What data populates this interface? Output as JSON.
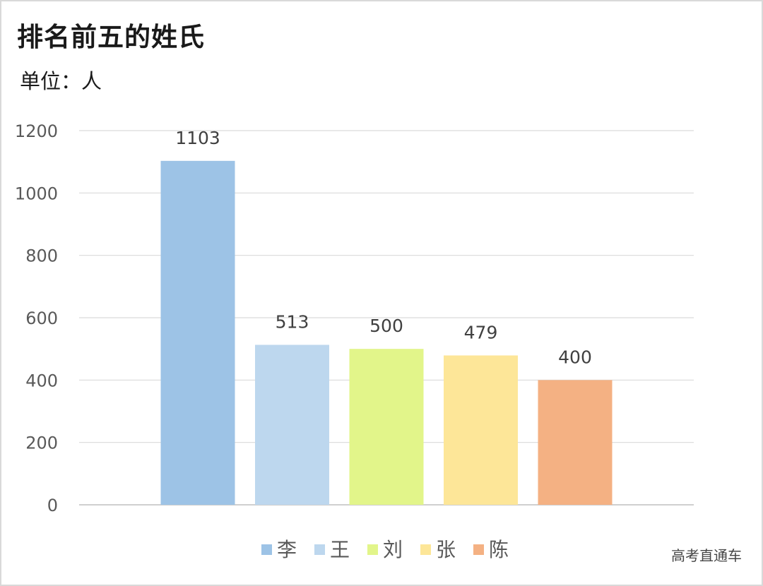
{
  "title": "排名前五的姓氏",
  "unit_label": "单位：人",
  "watermark": "高考直通车",
  "chart_data": {
    "type": "bar",
    "title": "排名前五的姓氏",
    "ylabel": "单位：人",
    "xlabel": "",
    "ylim": [
      0,
      1200
    ],
    "yticks": [
      0,
      200,
      400,
      600,
      800,
      1000,
      1200
    ],
    "grid": true,
    "legend": "bottom",
    "series": [
      {
        "name": "李",
        "value": 1103,
        "color": "#9dc3e6"
      },
      {
        "name": "王",
        "value": 513,
        "color": "#bdd7ee"
      },
      {
        "name": "刘",
        "value": 500,
        "color": "#e2f58a"
      },
      {
        "name": "张",
        "value": 479,
        "color": "#fde698"
      },
      {
        "name": "陈",
        "value": 400,
        "color": "#f4b183"
      }
    ]
  }
}
